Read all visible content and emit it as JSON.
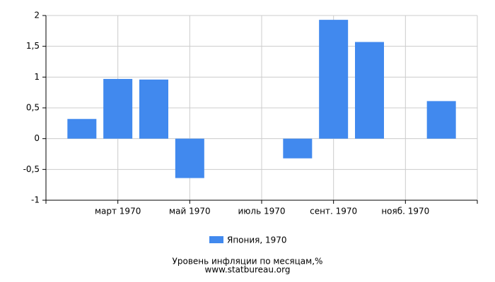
{
  "chart_data": {
    "type": "bar",
    "title": "Уровень инфляции по месяцам,%",
    "subtitle": "www.statbureau.org",
    "categories": [
      null,
      null,
      "март 1970",
      null,
      "май 1970",
      null,
      "июль 1970",
      null,
      "сент. 1970",
      null,
      "нояб. 1970",
      null
    ],
    "series": [
      {
        "name": "Япония, 1970",
        "color": "#4189ee",
        "values": [
          null,
          0.32,
          0.97,
          0.96,
          -0.64,
          0,
          0,
          -0.32,
          1.93,
          1.57,
          0,
          0.61
        ]
      }
    ],
    "ylim": [
      -1,
      2
    ],
    "yticks": [
      -1,
      {
        "value": -0.5,
        "label": "-0,5"
      },
      0,
      {
        "value": 0.5,
        "label": "0,5"
      },
      1,
      {
        "value": 1.5,
        "label": "1,5"
      },
      2
    ],
    "grid": true
  }
}
